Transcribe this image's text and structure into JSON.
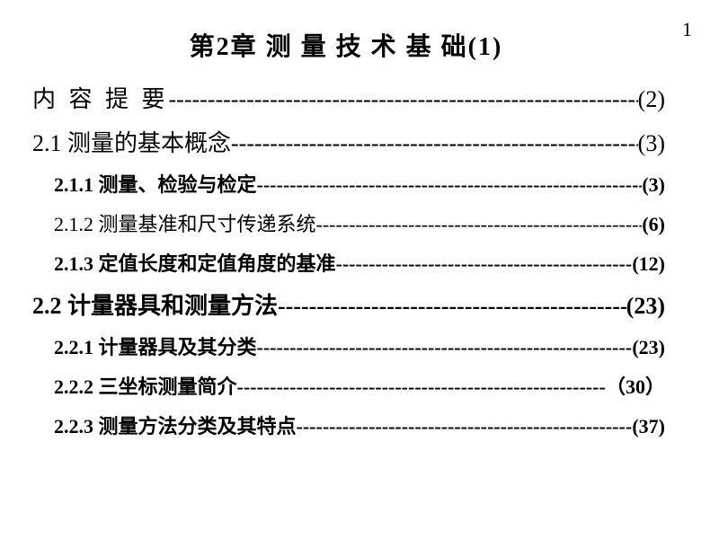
{
  "page_number": "1",
  "chapter_title": "第2章   测 量 技 术  基 础(1)",
  "toc": [
    {
      "label": "内  容  提  要",
      "page": "(2)",
      "class": "level-0",
      "page_class": ""
    },
    {
      "label": "2.1 测量的基本概念",
      "page": "(3)",
      "class": "level-1",
      "page_class": ""
    },
    {
      "label": "2.1.1 测量、检验与检定",
      "page": "(3)",
      "class": "level-2",
      "page_class": ""
    },
    {
      "label": "2.1.2  测量基准和尺寸传递系统",
      "page": "(6)",
      "class": "level-2n",
      "page_class": "pg-bold"
    },
    {
      "label": "2.1.3  定值长度和定值角度的基准",
      "page": "(12)",
      "class": "level-2",
      "page_class": ""
    },
    {
      "label": "2.2  计量器具和测量方法",
      "page": "(23)",
      "class": "level-1b",
      "page_class": "pg-bold"
    },
    {
      "label": "2.2.1  计量器具及其分类",
      "page": "(23)",
      "class": "level-2",
      "page_class": ""
    },
    {
      "label": "2.2.2  三坐标测量简介",
      "page": "（30）",
      "class": "level-2",
      "page_class": ""
    },
    {
      "label": "2.2.3  测量方法分类及其特点",
      "page": "(37)",
      "class": "level-2",
      "page_class": ""
    }
  ],
  "leader_char": "-",
  "colors": {
    "text": "#000000",
    "bg": "#ffffff"
  }
}
